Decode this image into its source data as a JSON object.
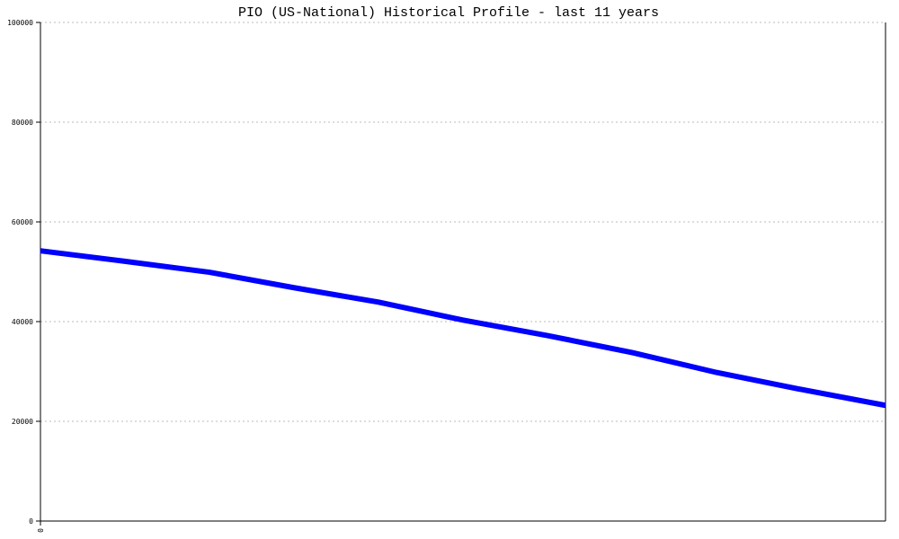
{
  "chart_data": {
    "type": "line",
    "title": "PIO (US-National) Historical Profile - last 11 years",
    "xlabel": "",
    "ylabel": "",
    "ylim": [
      0,
      100000
    ],
    "yticks": [
      "0",
      "20000",
      "40000",
      "60000",
      "80000",
      "100000"
    ],
    "xticks": [
      "0"
    ],
    "grid": true,
    "line_color": "#0000ff",
    "series": [
      {
        "x": [
          0,
          1,
          2,
          3,
          4,
          5,
          6,
          7,
          8,
          9,
          10
        ],
        "values": [
          54200,
          52100,
          49900,
          46800,
          43900,
          40300,
          37200,
          33800,
          29800,
          26400,
          23200
        ]
      }
    ]
  }
}
